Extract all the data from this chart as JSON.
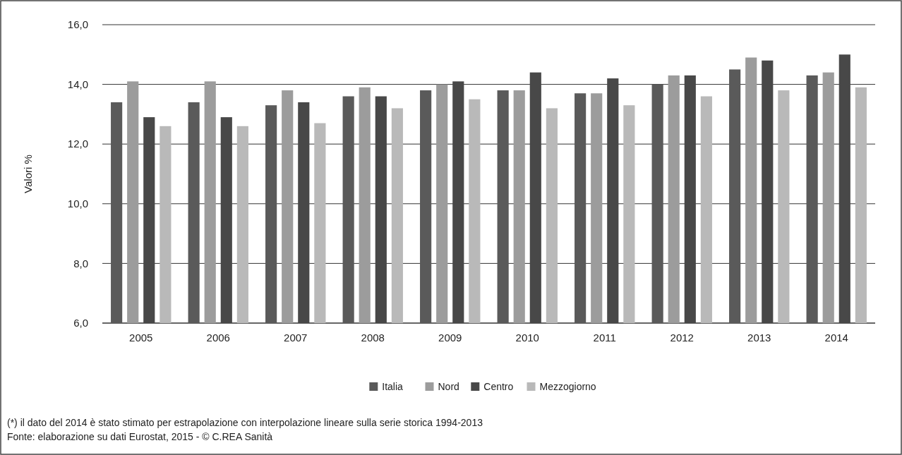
{
  "chart_data": {
    "type": "bar",
    "ylabel": "Valori %",
    "categories": [
      "2005",
      "2006",
      "2007",
      "2008",
      "2009",
      "2010",
      "2011",
      "2012",
      "2013",
      "2014"
    ],
    "series": [
      {
        "name": "Italia",
        "color": "#5a5a5a",
        "values": [
          13.4,
          13.4,
          13.3,
          13.6,
          13.8,
          13.8,
          13.7,
          14.0,
          14.5,
          14.3
        ]
      },
      {
        "name": "Nord",
        "color": "#9c9c9c",
        "values": [
          14.1,
          14.1,
          13.8,
          13.9,
          14.0,
          13.8,
          13.7,
          14.3,
          14.9,
          14.4
        ]
      },
      {
        "name": "Centro",
        "color": "#484848",
        "values": [
          12.9,
          12.9,
          13.4,
          13.6,
          14.1,
          14.4,
          14.2,
          14.3,
          14.8,
          15.0
        ]
      },
      {
        "name": "Mezzogiorno",
        "color": "#b9b9b9",
        "values": [
          12.6,
          12.6,
          12.7,
          13.2,
          13.5,
          13.2,
          13.3,
          13.6,
          13.8,
          13.9
        ]
      }
    ],
    "ylim": [
      6,
      16
    ],
    "yticks": [
      {
        "value": 6,
        "label": "6,0"
      },
      {
        "value": 8,
        "label": "8,0"
      },
      {
        "value": 10,
        "label": "10,0"
      },
      {
        "value": 12,
        "label": "12,0"
      },
      {
        "value": 14,
        "label": "14,0"
      },
      {
        "value": 16,
        "label": "16,0"
      }
    ],
    "grid": "y",
    "legend": "bottom",
    "annotations": [
      "(*) il dato del 2014 è stato stimato per estrapolazione con interpolazione lineare sulla serie storica 1994-2013",
      "Fonte: elaborazione su dati Eurostat, 2015  - © C.REA Sanità"
    ]
  }
}
